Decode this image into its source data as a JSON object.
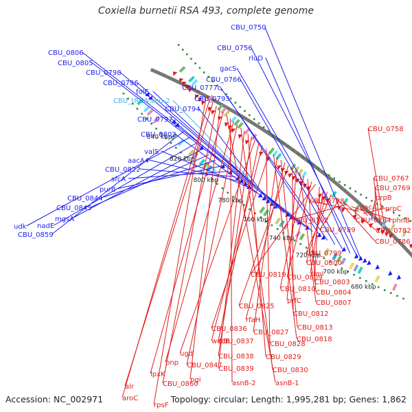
{
  "title": "Coxiella burnetii RSA 493, complete genome",
  "footer": {
    "accession": "Accession: NC_002971",
    "info": "Topology: circular; Length: 1,995,281 bp; Genes: 1,862"
  },
  "colors": {
    "forward_genes": "#1b1bf0",
    "reverse_genes": "#e11a1a",
    "trna": "#3cb4e6",
    "backbone": "#777777",
    "ticks": "#2e8b2e"
  },
  "scale_labels": [
    "680 kbp",
    "700 kbp",
    "720 kbp",
    "740 kbp",
    "760 kbp",
    "780 kbp",
    "800 kbp",
    "820 kbp",
    "840 kbp"
  ],
  "forward_labels": [
    "CBU_0750",
    "CBU_0756",
    "rluD",
    "gacS",
    "CBU_0766",
    "CBU_0777c",
    "CBU_0793",
    "CBU_0806",
    "CBU_0805",
    "CBU_0798",
    "CBU_0796",
    "folE",
    "CBU_tRNA-Leu-2",
    "CBU_0794",
    "CBU_0797",
    "CBU_0802",
    "valS",
    "aacA4",
    "CBU_0822",
    "sfcA",
    "purB",
    "CBU_0844",
    "CBU_0845",
    "mgsA",
    "nadE",
    "udk",
    "CBU_0859"
  ],
  "reverse_labels": [
    "CBU_0758",
    "CBU_0767",
    "CBU_0769",
    "prpB",
    "gacA.2",
    "prpC",
    "CBU_0788",
    "CBU_0784",
    "phnB",
    "CBU_0792",
    "CBU_0782",
    "CBU_0789",
    "CBU_0786",
    "CBU_0799",
    "CBU_0800",
    "rimI",
    "CBU_0803",
    "CBU_0819",
    "CBU_0809",
    "CBU_0804",
    "CBU_0810",
    "CBU_0807",
    "prfC",
    "CBU_0812",
    "CBU_0825",
    "rfaH",
    "CBU_0813",
    "CBU_0827",
    "CBU_0818",
    "CBU_0836",
    "CBU_0828",
    "wecB",
    "CBU_0837",
    "ugd",
    "CBU_0838",
    "CBU_0829",
    "CBU_0839",
    "CBU_0830",
    "CBU_0847",
    "pnp",
    "asnB-2",
    "asnB-1",
    "lpxK",
    "pgi",
    "CBU_0860",
    "alr",
    "aroC",
    "rpsF"
  ]
}
